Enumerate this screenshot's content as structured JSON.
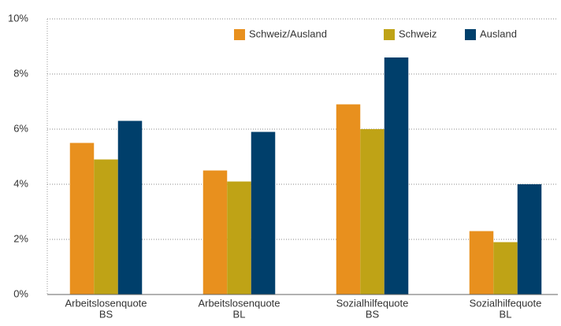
{
  "chart_data": {
    "type": "bar",
    "categories": [
      [
        "Arbeitslosenquote",
        "BS"
      ],
      [
        "Arbeitslosenquote",
        "BL"
      ],
      [
        "Sozialhilfequote",
        "BS"
      ],
      [
        "Sozialhilfequote",
        "BL"
      ]
    ],
    "series": [
      {
        "name": "Schweiz/Ausland",
        "color": "#e8901e",
        "values": [
          5.5,
          4.5,
          6.9,
          2.3
        ]
      },
      {
        "name": "Schweiz",
        "color": "#bfa316",
        "values": [
          4.9,
          4.1,
          6.0,
          1.9
        ]
      },
      {
        "name": "Ausland",
        "color": "#003f6b",
        "values": [
          6.3,
          5.9,
          8.6,
          4.0
        ]
      }
    ],
    "ylim": [
      0,
      10
    ],
    "yticks": [
      {
        "value": 0,
        "label": "0%"
      },
      {
        "value": 2,
        "label": "2%"
      },
      {
        "value": 4,
        "label": "4%"
      },
      {
        "value": 6,
        "label": "6%"
      },
      {
        "value": 8,
        "label": "8%"
      },
      {
        "value": 10,
        "label": "10%"
      }
    ],
    "grid": true,
    "legend": "top-right"
  }
}
